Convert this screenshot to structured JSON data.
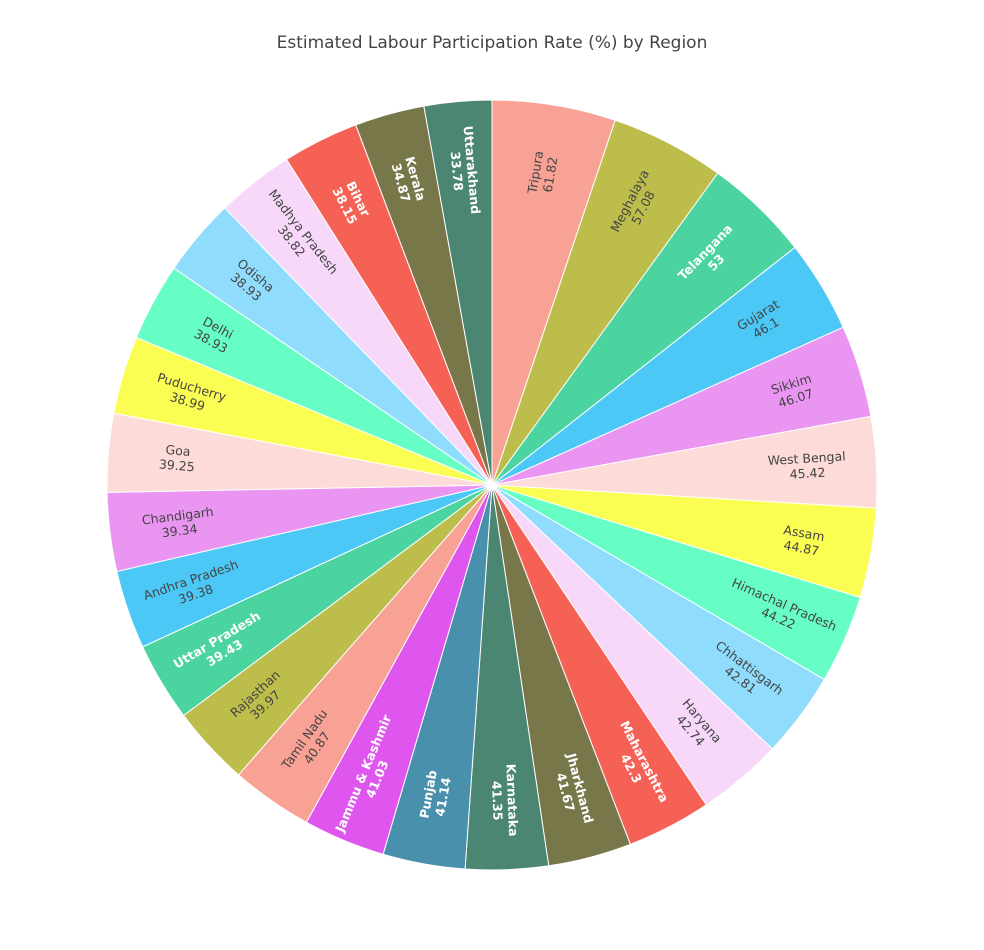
{
  "chart_data": {
    "type": "pie",
    "title": "Estimated Labour Participation Rate (%) by Region",
    "start_angle_deg": 90,
    "direction": "clockwise",
    "dark_text_color": "#444444",
    "light_text_color": "#ffffff",
    "slices": [
      {
        "label": "Tripura",
        "value": 61.82,
        "color": "#f8a195",
        "text": "dark"
      },
      {
        "label": "Meghalaya",
        "value": 57.08,
        "color": "#bcbd4a",
        "text": "dark"
      },
      {
        "label": "Telangana",
        "value": 53,
        "color": "#4bd3a0",
        "text": "light"
      },
      {
        "label": "Gujarat",
        "value": 46.1,
        "color": "#4cc8f6",
        "text": "dark"
      },
      {
        "label": "Sikkim",
        "value": 46.07,
        "color": "#ea95f2",
        "text": "dark"
      },
      {
        "label": "West Bengal",
        "value": 45.42,
        "color": "#fcdbd8",
        "text": "dark"
      },
      {
        "label": "Assam",
        "value": 44.87,
        "color": "#fbfe52",
        "text": "dark"
      },
      {
        "label": "Himachal Pradesh",
        "value": 44.22,
        "color": "#66fec4",
        "text": "dark"
      },
      {
        "label": "Chhattisgarh",
        "value": 42.81,
        "color": "#8fdcfd",
        "text": "dark"
      },
      {
        "label": "Haryana",
        "value": 42.74,
        "color": "#f7d8f8",
        "text": "dark"
      },
      {
        "label": "Maharashtra",
        "value": 42.3,
        "color": "#f66155",
        "text": "light"
      },
      {
        "label": "Jharkhand",
        "value": 41.67,
        "color": "#78774a",
        "text": "light"
      },
      {
        "label": "Karnataka",
        "value": 41.35,
        "color": "#4a8672",
        "text": "light"
      },
      {
        "label": "Punjab",
        "value": 41.14,
        "color": "#4990ac",
        "text": "light"
      },
      {
        "label": "Jammu & Kashmir",
        "value": 41.03,
        "color": "#df56ef",
        "text": "light"
      },
      {
        "label": "Tamil Nadu",
        "value": 40.87,
        "color": "#f8a195",
        "text": "dark"
      },
      {
        "label": "Rajasthan",
        "value": 39.97,
        "color": "#bcbd4a",
        "text": "dark"
      },
      {
        "label": "Uttar Pradesh",
        "value": 39.43,
        "color": "#4bd3a0",
        "text": "light"
      },
      {
        "label": "Andhra Pradesh",
        "value": 39.38,
        "color": "#4cc8f6",
        "text": "dark"
      },
      {
        "label": "Chandigarh",
        "value": 39.34,
        "color": "#ea95f2",
        "text": "dark"
      },
      {
        "label": "Goa",
        "value": 39.25,
        "color": "#fcdbd8",
        "text": "dark"
      },
      {
        "label": "Puducherry",
        "value": 38.99,
        "color": "#fbfe52",
        "text": "dark"
      },
      {
        "label": "Delhi",
        "value": 38.93,
        "color": "#66fec4",
        "text": "dark"
      },
      {
        "label": "Odisha",
        "value": 38.93,
        "color": "#8fdcfd",
        "text": "dark"
      },
      {
        "label": "Madhya Pradesh",
        "value": 38.82,
        "color": "#f7d8f8",
        "text": "dark"
      },
      {
        "label": "Bihar",
        "value": 38.15,
        "color": "#f66155",
        "text": "light"
      },
      {
        "label": "Kerala",
        "value": 34.87,
        "color": "#78774a",
        "text": "light"
      },
      {
        "label": "Uttarakhand",
        "value": 33.78,
        "color": "#4a8672",
        "text": "light"
      }
    ]
  }
}
